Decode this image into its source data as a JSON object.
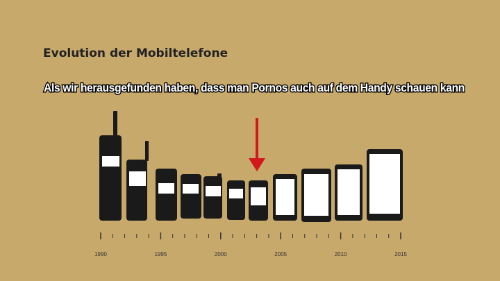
{
  "header": {
    "title": "Evolution der Mobiltelefone",
    "caption": "Als wir herausgefunden haben, dass man Pornos auch auf dem Handy schauen kann"
  },
  "timeline": {
    "labels": [
      "1990",
      "1995",
      "2000",
      "2005",
      "2010",
      "2015"
    ]
  }
}
